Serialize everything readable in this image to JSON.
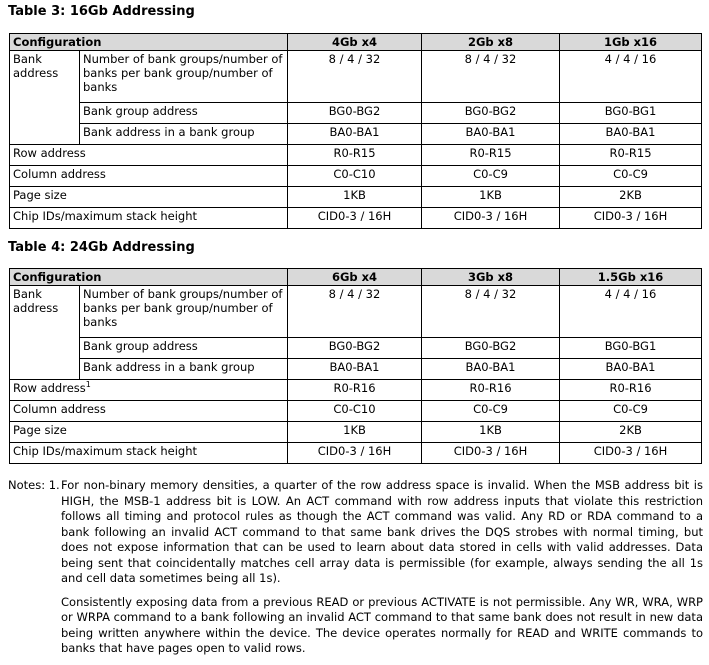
{
  "tables": [
    {
      "title": "Table 3: 16Gb Addressing",
      "header": [
        "Configuration",
        "4Gb x4",
        "2Gb x8",
        "1Gb x16"
      ],
      "bank_address": {
        "label": "Bank address",
        "rows": [
          {
            "label": "Number of bank groups/number of banks per bank group/number of banks",
            "values": [
              "8 / 4 / 32",
              "8 / 4 / 32",
              "4 / 4 / 16"
            ]
          },
          {
            "label": "Bank group address",
            "values": [
              "BG0-BG2",
              "BG0-BG2",
              "BG0-BG1"
            ]
          },
          {
            "label": "Bank address in a bank group",
            "values": [
              "BA0-BA1",
              "BA0-BA1",
              "BA0-BA1"
            ]
          }
        ]
      },
      "rows": [
        {
          "label": "Row address",
          "values": [
            "R0-R15",
            "R0-R15",
            "R0-R15"
          ]
        },
        {
          "label": "Column address",
          "values": [
            "C0-C10",
            "C0-C9",
            "C0-C9"
          ]
        },
        {
          "label": "Page size",
          "values": [
            "1KB",
            "1KB",
            "2KB"
          ]
        },
        {
          "label": "Chip IDs/maximum stack height",
          "values": [
            "CID0-3 / 16H",
            "CID0-3 / 16H",
            "CID0-3 / 16H"
          ]
        }
      ]
    },
    {
      "title": "Table 4: 24Gb Addressing",
      "header": [
        "Configuration",
        "6Gb x4",
        "3Gb x8",
        "1.5Gb x16"
      ],
      "bank_address": {
        "label": "Bank address",
        "rows": [
          {
            "label": "Number of bank groups/number of banks per bank group/number of banks",
            "values": [
              "8 / 4 / 32",
              "8 / 4 / 32",
              "4 / 4 / 16"
            ]
          },
          {
            "label": "Bank group address",
            "values": [
              "BG0-BG2",
              "BG0-BG2",
              "BG0-BG1"
            ]
          },
          {
            "label": "Bank address in a bank group",
            "values": [
              "BA0-BA1",
              "BA0-BA1",
              "BA0-BA1"
            ]
          }
        ]
      },
      "rows": [
        {
          "label": "Row address",
          "footnote": "1",
          "values": [
            "R0-R16",
            "R0-R16",
            "R0-R16"
          ]
        },
        {
          "label": "Column address",
          "values": [
            "C0-C10",
            "C0-C9",
            "C0-C9"
          ]
        },
        {
          "label": "Page size",
          "values": [
            "1KB",
            "1KB",
            "2KB"
          ]
        },
        {
          "label": "Chip IDs/maximum stack height",
          "values": [
            "CID0-3 / 16H",
            "CID0-3 / 16H",
            "CID0-3 / 16H"
          ]
        }
      ]
    }
  ],
  "notes": {
    "label": "Notes: 1.",
    "paragraphs": [
      "For non-binary memory densities, a quarter of the row address space is invalid. When the MSB address bit is HIGH, the MSB-1 address bit is LOW. An ACT command with row address inputs that violate this restriction follows all timing and protocol rules as though the ACT command was valid. Any RD or RDA command to a bank following an invalid ACT command to that same bank drives the DQS strobes with normal timing, but does not expose information that can be used to learn about data stored in cells with valid addresses. Data being sent that coincidentally matches cell array data is permissible (for example, always sending the all 1s and cell data sometimes being all 1s).",
      "Consistently exposing data from a previous READ or previous ACTIVATE is not permissible. Any WR, WRA, WRP or WRPA command to a bank following an invalid ACT command to that same bank does not result in new data being written anywhere within the device. The device operates normally for READ and WRITE commands to banks that have pages open to valid rows."
    ]
  }
}
